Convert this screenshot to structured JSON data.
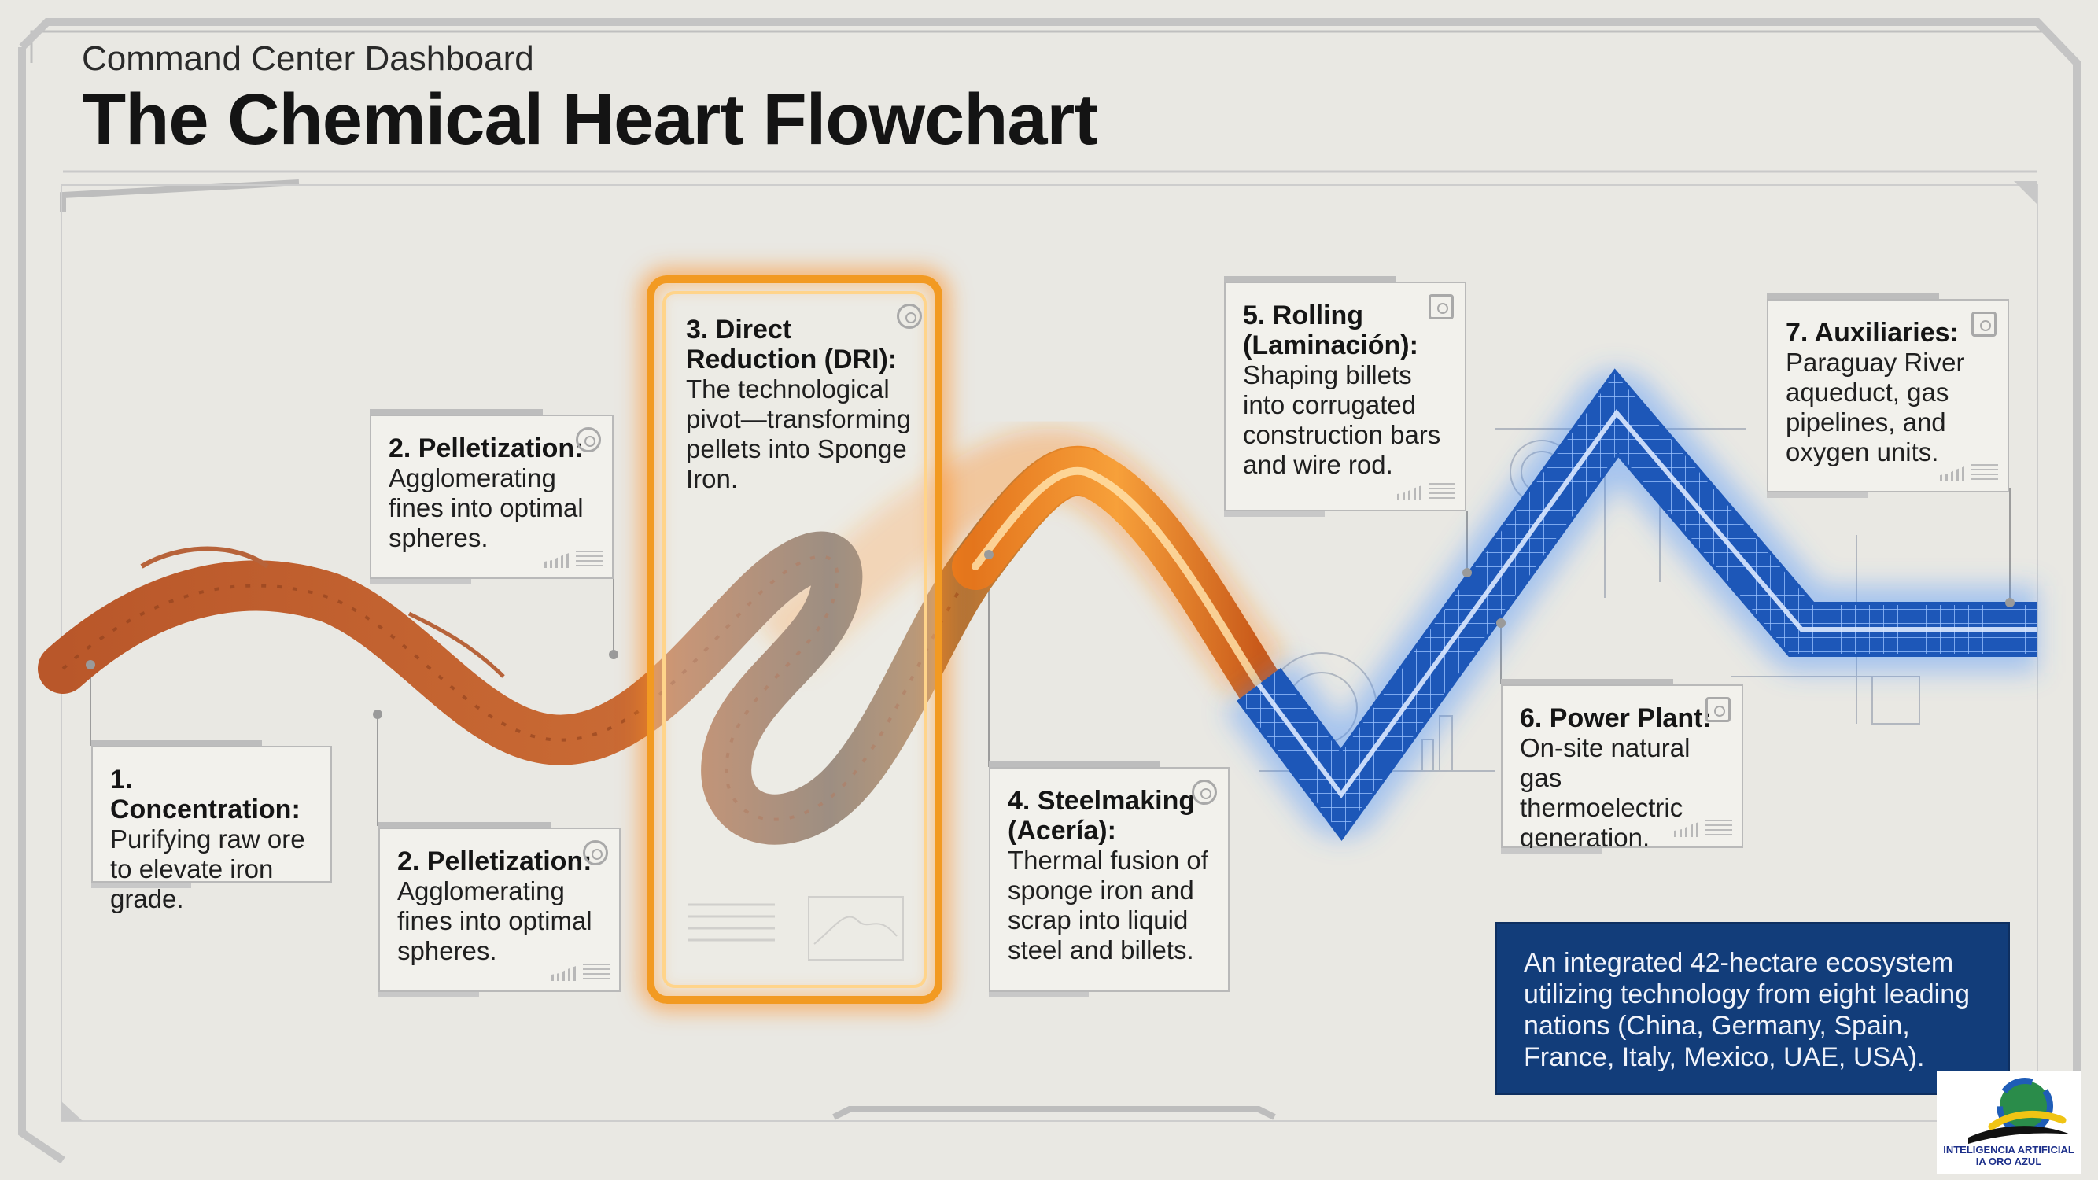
{
  "header": {
    "subtitle": "Command Center Dashboard",
    "title": "The Chemical Heart Flowchart"
  },
  "steps": [
    {
      "heading": "1. Concentration:",
      "body": "Purifying raw ore to elevate iron grade."
    },
    {
      "heading": "2. Pelletization:",
      "body": "Agglomerating fines into optimal spheres."
    },
    {
      "heading": "2. Pelletization:",
      "body": "Agglomerating fines into optimal spheres."
    },
    {
      "heading": "3. Direct Reduction (DRI):",
      "body": "The technological pivot—transforming pellets into Sponge Iron."
    },
    {
      "heading": "4. Steelmaking (Acería):",
      "body": "Thermal fusion of sponge iron and scrap into liquid steel and billets."
    },
    {
      "heading": "5. Rolling (Laminación):",
      "body": "Shaping billets into corrugated construction bars and wire rod."
    },
    {
      "heading": "6. Power Plant:",
      "body": "On-site natural gas thermoelectric generation."
    },
    {
      "heading": "7. Auxiliaries:",
      "body": "Paraguay River aqueduct, gas pipelines, and oxygen units."
    }
  ],
  "summary": {
    "text": "An integrated 42-hectare ecosystem utilizing technology from eight leading nations (China, Germany, Spain, France, Italy, Mexico, UAE, USA)."
  },
  "logo": {
    "line1": "INTELIGENCIA ARTIFICIAL",
    "line2": "IA ORO AZUL"
  },
  "colors": {
    "ore": "#c2622e",
    "heat": "#f29a22",
    "blue": "#1f5fc8",
    "panel": "#123d7a"
  }
}
